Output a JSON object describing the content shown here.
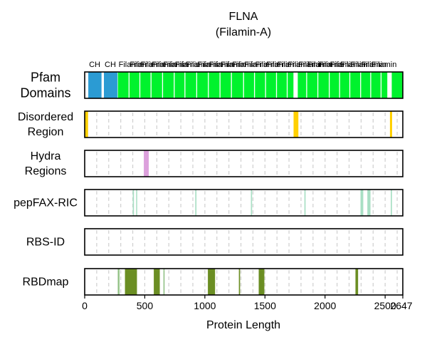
{
  "title": [
    "FLNA",
    "(Filamin-A)"
  ],
  "chart_data": {
    "type": "track",
    "protein_length": 2647,
    "xlim": [
      0,
      2647
    ],
    "xlabel": "Protein Length",
    "x_ticks": [
      0,
      500,
      1000,
      1500,
      2000,
      2500,
      2647
    ],
    "grid_step": 100,
    "grid": "vertical dashed",
    "pfam_labels": [
      "CH",
      "CH",
      "Filamin",
      "Filamin",
      "Filamin",
      "Filamin",
      "Filamin",
      "Filamin",
      "Filamin",
      "Filamin",
      "Filamin",
      "Filamin",
      "Filamin",
      "Filamin",
      "Filamin",
      "Filamin",
      "Filamin",
      "Filamin",
      "Filamin",
      "Filamin",
      "Filamin",
      "Filamin",
      "Filamin",
      "Filamin",
      "Filamin",
      "Filamin"
    ],
    "tracks": [
      {
        "name": [
          "Pfam",
          "Domains"
        ],
        "kind": "pfam",
        "segments": [
          {
            "start": 30,
            "end": 140,
            "color": "#2b9bd3"
          },
          {
            "start": 160,
            "end": 272,
            "color": "#2b9bd3"
          },
          {
            "start": 276,
            "end": 1737,
            "color": "#00f22d"
          },
          {
            "start": 1773,
            "end": 2518,
            "color": "#00f22d"
          },
          {
            "start": 2555,
            "end": 2647,
            "color": "#00f22d"
          }
        ],
        "dividers": [
          369,
          459,
          552,
          648,
          745,
          834,
          932,
          1029,
          1126,
          1221,
          1322,
          1413,
          1505,
          1596,
          1685,
          1847,
          1940,
          2035,
          2121,
          2206,
          2296,
          2380,
          2466
        ]
      },
      {
        "name": [
          "Disordered",
          "Region"
        ],
        "kind": "region",
        "segments": [
          {
            "start": 0,
            "end": 28,
            "color": "#ffd000"
          },
          {
            "start": 1738,
            "end": 1778,
            "color": "#ffd000"
          },
          {
            "start": 2540,
            "end": 2558,
            "color": "#ffd000"
          }
        ]
      },
      {
        "name": [
          "Hydra",
          "Regions"
        ],
        "kind": "region",
        "segments": [
          {
            "start": 492,
            "end": 533,
            "color": "#dca0dc"
          }
        ]
      },
      {
        "name": [
          "pepFAX-RIC"
        ],
        "kind": "region",
        "segments": [
          {
            "start": 400,
            "end": 410,
            "color": "#a8dfc4"
          },
          {
            "start": 428,
            "end": 437,
            "color": "#a8dfc4"
          },
          {
            "start": 920,
            "end": 930,
            "color": "#a8dfc4"
          },
          {
            "start": 1383,
            "end": 1393,
            "color": "#a8dfc4"
          },
          {
            "start": 1828,
            "end": 1838,
            "color": "#a8dfc4"
          },
          {
            "start": 2295,
            "end": 2318,
            "color": "#a8dfc4"
          },
          {
            "start": 2352,
            "end": 2378,
            "color": "#a8dfc4"
          },
          {
            "start": 2547,
            "end": 2557,
            "color": "#a8dfc4"
          }
        ]
      },
      {
        "name": [
          "RBS-ID"
        ],
        "kind": "region",
        "segments": []
      },
      {
        "name": [
          "RBDmap"
        ],
        "kind": "region",
        "segments": [
          {
            "start": 275,
            "end": 290,
            "color": "#96c48a"
          },
          {
            "start": 335,
            "end": 435,
            "color": "#6b8e23"
          },
          {
            "start": 575,
            "end": 625,
            "color": "#6b8e23"
          },
          {
            "start": 655,
            "end": 665,
            "color": "#96c48a"
          },
          {
            "start": 1025,
            "end": 1085,
            "color": "#6b8e23"
          },
          {
            "start": 1283,
            "end": 1293,
            "color": "#6b8e23"
          },
          {
            "start": 1448,
            "end": 1495,
            "color": "#6b8e23"
          },
          {
            "start": 2253,
            "end": 2275,
            "color": "#6b8e23"
          }
        ]
      }
    ]
  }
}
